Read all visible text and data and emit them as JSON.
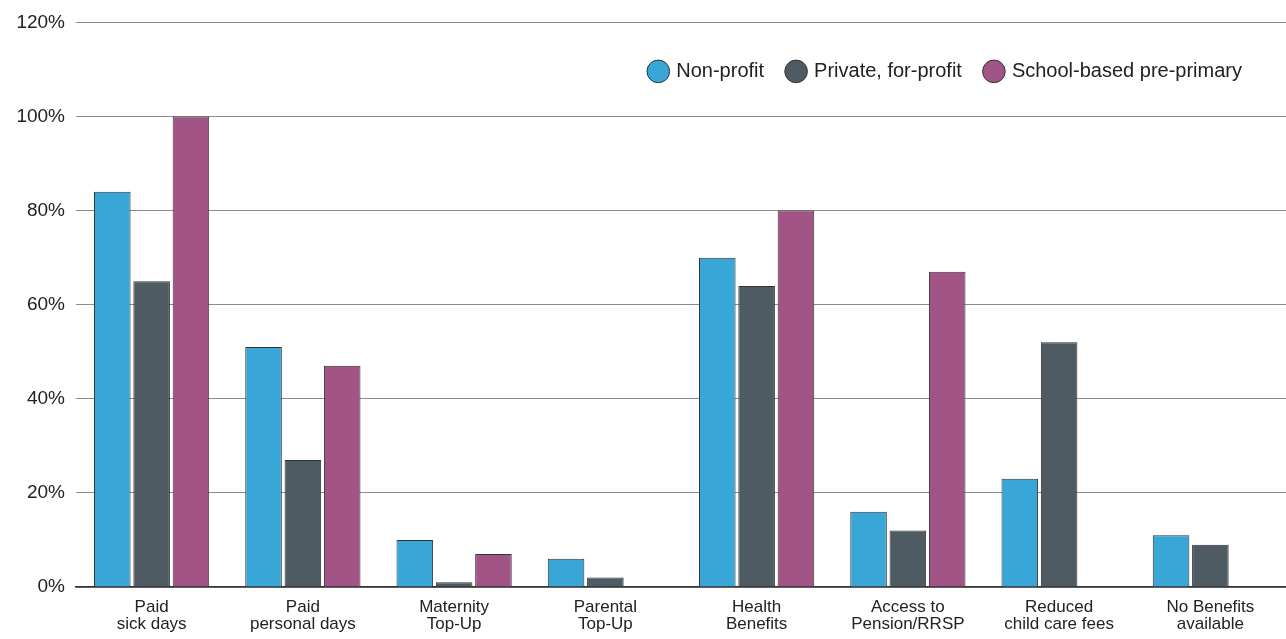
{
  "chart_data": {
    "type": "bar",
    "categories": [
      "Paid\nsick days",
      "Paid\npersonal days",
      "Maternity\nTop-Up",
      "Parental\nTop-Up",
      "Health\nBenefits",
      "Access to\nPension/RRSP",
      "Reduced\nchild care fees",
      "No Benefits\navailable"
    ],
    "series": [
      {
        "name": "Non-profit",
        "color": "#38a6d6",
        "values": [
          84,
          51,
          10,
          6,
          70,
          16,
          23,
          11
        ]
      },
      {
        "name": "Private, for-profit",
        "color": "#4f5b63",
        "values": [
          65,
          27,
          1,
          2,
          64,
          12,
          52,
          9
        ]
      },
      {
        "name": "School-based pre-primary",
        "color": "#a25486",
        "values": [
          100,
          47,
          7,
          0,
          80,
          67,
          0,
          0
        ]
      }
    ],
    "ylim": [
      0,
      120
    ],
    "yticks": [
      {
        "value": 0,
        "label": "0%"
      },
      {
        "value": 20,
        "label": "20%"
      },
      {
        "value": 40,
        "label": "40%"
      },
      {
        "value": 60,
        "label": "60%"
      },
      {
        "value": 80,
        "label": "80%"
      },
      {
        "value": 100,
        "label": "100%"
      },
      {
        "value": 120,
        "label": "120%"
      }
    ],
    "grid": "y",
    "legend": "top right"
  }
}
